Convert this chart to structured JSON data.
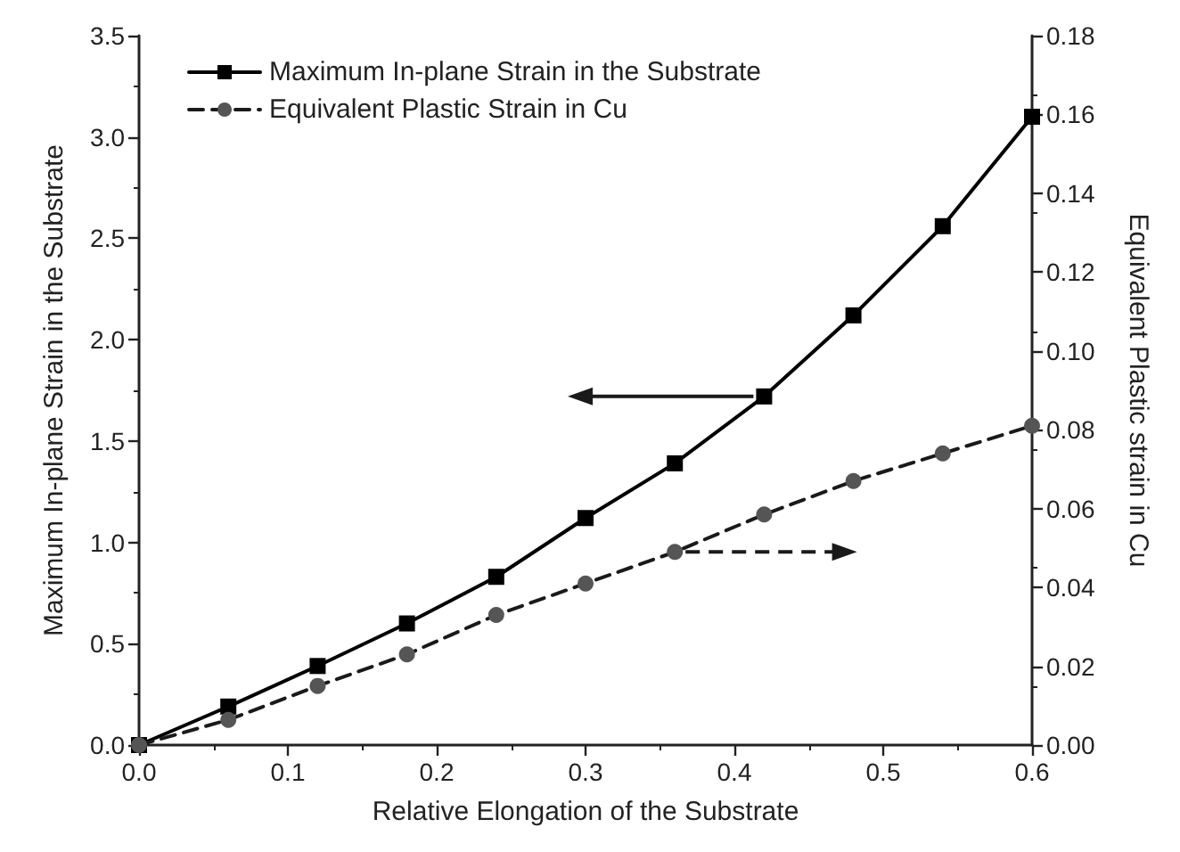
{
  "chart_data": {
    "type": "line",
    "xlabel": "Relative Elongation of the Substrate",
    "ylabel": "Maximum In-plane Strain in the Substrate",
    "y2label": "Equivalent Plastic strain in Cu",
    "x": [
      0,
      0.06,
      0.12,
      0.18,
      0.24,
      0.3,
      0.36,
      0.42,
      0.48,
      0.54,
      0.6
    ],
    "series": [
      {
        "name": "Maximum In-plane Strain in the Substrate",
        "color": "#000000",
        "marker": "square",
        "line_style": "solid",
        "values": [
          0,
          0.19,
          0.39,
          0.6,
          0.83,
          1.12,
          1.39,
          1.72,
          2.12,
          2.56,
          3.1
        ]
      },
      {
        "name": "Equivalent Plastic Strain in Cu",
        "color": "#555555",
        "marker": "circle",
        "line_style": "dashed",
        "axis": "y2",
        "values": [
          0,
          0.0064,
          0.015,
          0.023,
          0.033,
          0.041,
          0.049,
          0.0585,
          0.067,
          0.074,
          0.081
        ]
      }
    ],
    "xlim": [
      0,
      0.6
    ],
    "xticks": [
      {
        "value": 0,
        "label": "0.0"
      },
      0.1,
      0.2,
      0.3,
      0.4,
      0.5,
      0.6
    ],
    "ylim": [
      0,
      3.5
    ],
    "yticks": [
      {
        "value": 0,
        "label": "0.0"
      },
      0.5,
      {
        "value": 1,
        "label": "1.0"
      },
      1.5,
      {
        "value": 2,
        "label": "2.0"
      },
      2.5,
      {
        "value": 3,
        "label": "3.0"
      },
      3.5
    ],
    "y2lim": [
      0,
      0.18
    ],
    "y2ticks": [
      {
        "value": 0,
        "label": "0.00"
      },
      0.02,
      0.04,
      0.06,
      0.08,
      {
        "value": 0.1,
        "label": "0.10"
      },
      0.12,
      0.14,
      0.16,
      0.18
    ],
    "grid": false,
    "legend": "top left"
  }
}
